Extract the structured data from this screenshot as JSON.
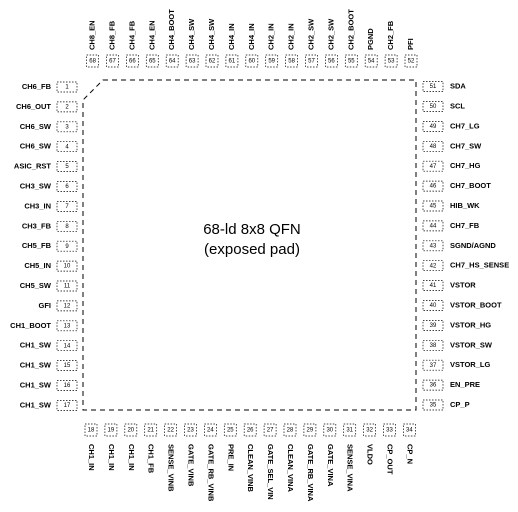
{
  "package": {
    "title": "68-ld 8x8 QFN",
    "subtitle": "(exposed pad)"
  },
  "pins": {
    "left": [
      {
        "number": 1,
        "name": "CH6_FB"
      },
      {
        "number": 2,
        "name": "CH6_OUT"
      },
      {
        "number": 3,
        "name": "CH6_SW"
      },
      {
        "number": 4,
        "name": "CH6_SW"
      },
      {
        "number": 5,
        "name": "ASIC_RST"
      },
      {
        "number": 6,
        "name": "CH3_SW"
      },
      {
        "number": 7,
        "name": "CH3_IN"
      },
      {
        "number": 8,
        "name": "CH3_FB"
      },
      {
        "number": 9,
        "name": "CH5_FB"
      },
      {
        "number": 10,
        "name": "CH5_IN"
      },
      {
        "number": 11,
        "name": "CH5_SW"
      },
      {
        "number": 12,
        "name": "GFI"
      },
      {
        "number": 13,
        "name": "CH1_BOOT"
      },
      {
        "number": 14,
        "name": "CH1_SW"
      },
      {
        "number": 15,
        "name": "CH1_SW"
      },
      {
        "number": 16,
        "name": "CH1_SW"
      },
      {
        "number": 17,
        "name": "CH1_SW"
      }
    ],
    "bottom": [
      {
        "number": 18,
        "name": "CH1_IN"
      },
      {
        "number": 19,
        "name": "CH1_IN"
      },
      {
        "number": 20,
        "name": "CH1_IN"
      },
      {
        "number": 21,
        "name": "CH1_FB"
      },
      {
        "number": 22,
        "name": "SENSE_VINB"
      },
      {
        "number": 23,
        "name": "GATE_VINB"
      },
      {
        "number": 24,
        "name": "GATE_RB_VINB"
      },
      {
        "number": 25,
        "name": "PRE_IN"
      },
      {
        "number": 26,
        "name": "CLEAN_VINB"
      },
      {
        "number": 27,
        "name": "GATE_SEL_VIN"
      },
      {
        "number": 28,
        "name": "CLEAN_VINA"
      },
      {
        "number": 29,
        "name": "GATE_RB_VINA"
      },
      {
        "number": 30,
        "name": "GATE_VINA"
      },
      {
        "number": 31,
        "name": "SENSE_VINA"
      },
      {
        "number": 32,
        "name": "VLDO"
      },
      {
        "number": 33,
        "name": "CP_OUT"
      },
      {
        "number": 34,
        "name": "CP_N"
      }
    ],
    "right": [
      {
        "number": 35,
        "name": "CP_P"
      },
      {
        "number": 36,
        "name": "EN_PRE"
      },
      {
        "number": 37,
        "name": "VSTOR_LG"
      },
      {
        "number": 38,
        "name": "VSTOR_SW"
      },
      {
        "number": 39,
        "name": "VSTOR_HG"
      },
      {
        "number": 40,
        "name": "VSTOR_BOOT"
      },
      {
        "number": 41,
        "name": "VSTOR"
      },
      {
        "number": 42,
        "name": "CH7_HS_SENSE"
      },
      {
        "number": 43,
        "name": "SGND/AGND"
      },
      {
        "number": 44,
        "name": "CH7_FB"
      },
      {
        "number": 45,
        "name": "HIB_WK"
      },
      {
        "number": 46,
        "name": "CH7_BOOT"
      },
      {
        "number": 47,
        "name": "CH7_HG"
      },
      {
        "number": 48,
        "name": "CH7_SW"
      },
      {
        "number": 49,
        "name": "CH7_LG"
      },
      {
        "number": 50,
        "name": "SCL"
      },
      {
        "number": 51,
        "name": "SDA"
      }
    ],
    "top": [
      {
        "number": 52,
        "name": "PFI"
      },
      {
        "number": 53,
        "name": "CH2_FB"
      },
      {
        "number": 54,
        "name": "PGND"
      },
      {
        "number": 55,
        "name": "CH2_BOOT"
      },
      {
        "number": 56,
        "name": "CH2_SW"
      },
      {
        "number": 57,
        "name": "CH2_SW"
      },
      {
        "number": 58,
        "name": "CH2_IN"
      },
      {
        "number": 59,
        "name": "CH2_IN"
      },
      {
        "number": 60,
        "name": "CH4_IN"
      },
      {
        "number": 61,
        "name": "CH4_IN"
      },
      {
        "number": 62,
        "name": "CH4_SW"
      },
      {
        "number": 63,
        "name": "CH4_SW"
      },
      {
        "number": 64,
        "name": "CH4_BOOT"
      },
      {
        "number": 65,
        "name": "CH4_EN"
      },
      {
        "number": 66,
        "name": "CH4_FB"
      },
      {
        "number": 67,
        "name": "CH8_FB"
      },
      {
        "number": 68,
        "name": "CH8_EN"
      }
    ]
  }
}
